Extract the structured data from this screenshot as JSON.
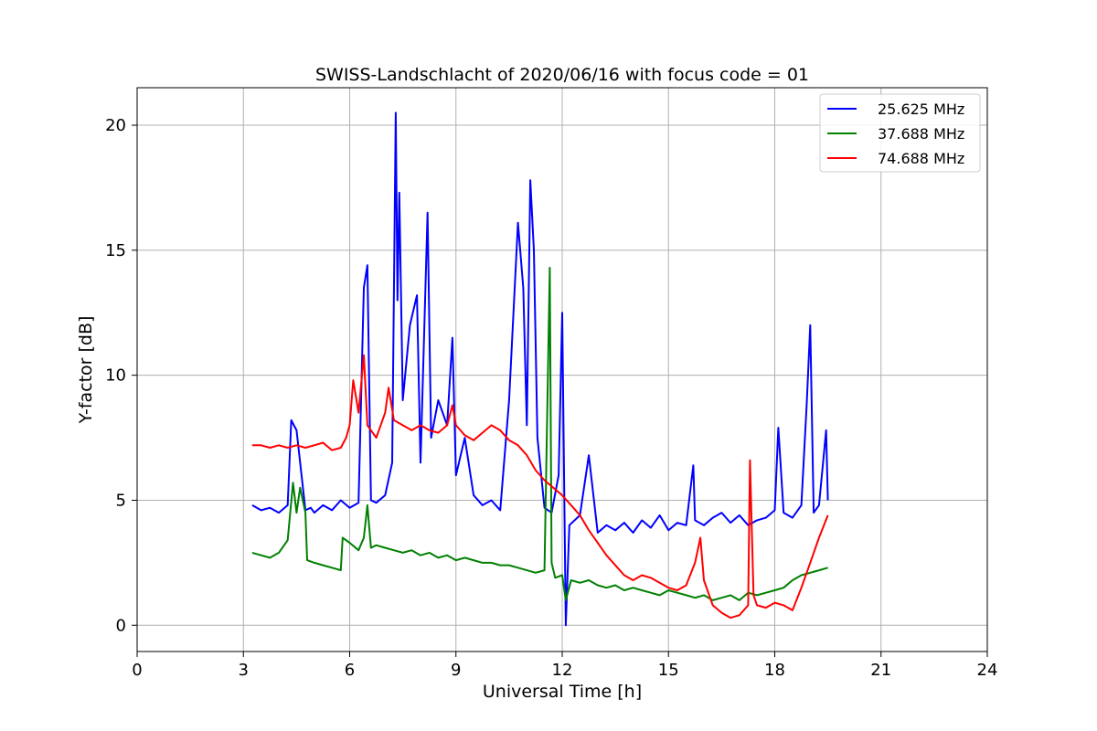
{
  "chart_data": {
    "type": "line",
    "title": "SWISS-Landschlacht of 2020/06/16 with focus code = 01",
    "xlabel": "Universal Time [h]",
    "ylabel": "Y-factor [dB]",
    "xlim": [
      0,
      24
    ],
    "ylim": [
      -1.05,
      21.5
    ],
    "xticks": [
      0,
      3,
      6,
      9,
      12,
      15,
      18,
      21,
      24
    ],
    "yticks": [
      0,
      5,
      10,
      15,
      20
    ],
    "grid": true,
    "legend_position": "top-right",
    "series": [
      {
        "name": "25.625 MHz",
        "color": "#0000ff",
        "x": [
          3.25,
          3.5,
          3.75,
          4.0,
          4.25,
          4.35,
          4.5,
          4.75,
          4.9,
          5.0,
          5.25,
          5.5,
          5.75,
          6.0,
          6.25,
          6.4,
          6.5,
          6.6,
          6.75,
          7.0,
          7.2,
          7.3,
          7.35,
          7.4,
          7.5,
          7.7,
          7.9,
          8.0,
          8.2,
          8.3,
          8.5,
          8.75,
          8.9,
          9.0,
          9.25,
          9.5,
          9.75,
          10.0,
          10.25,
          10.5,
          10.75,
          10.9,
          11.0,
          11.1,
          11.2,
          11.3,
          11.5,
          11.7,
          11.9,
          12.0,
          12.1,
          12.2,
          12.5,
          12.75,
          13.0,
          13.25,
          13.5,
          13.75,
          14.0,
          14.25,
          14.5,
          14.75,
          15.0,
          15.25,
          15.5,
          15.7,
          15.75,
          16.0,
          16.25,
          16.5,
          16.75,
          17.0,
          17.25,
          17.5,
          17.75,
          18.0,
          18.1,
          18.25,
          18.5,
          18.75,
          18.9,
          19.0,
          19.1,
          19.25,
          19.45,
          19.5
        ],
        "y": [
          4.8,
          4.6,
          4.7,
          4.5,
          4.8,
          8.2,
          7.8,
          4.6,
          4.7,
          4.5,
          4.8,
          4.6,
          5.0,
          4.7,
          4.9,
          13.5,
          14.4,
          5.0,
          4.9,
          5.2,
          6.5,
          20.5,
          13.0,
          17.3,
          9.0,
          12.0,
          13.2,
          6.5,
          16.5,
          7.5,
          9.0,
          8.0,
          11.5,
          6.0,
          7.5,
          5.2,
          4.8,
          5.0,
          4.6,
          9.0,
          16.1,
          13.5,
          8.0,
          17.8,
          15.0,
          7.5,
          4.7,
          4.5,
          6.0,
          12.5,
          0.0,
          4.0,
          4.4,
          6.8,
          3.7,
          4.0,
          3.8,
          4.1,
          3.7,
          4.2,
          3.9,
          4.4,
          3.8,
          4.1,
          4.0,
          6.4,
          4.2,
          4.0,
          4.3,
          4.5,
          4.1,
          4.4,
          4.0,
          4.2,
          4.3,
          4.6,
          7.9,
          4.5,
          4.3,
          4.8,
          8.8,
          12.0,
          4.5,
          4.8,
          7.8,
          5.0
        ]
      },
      {
        "name": "37.688 MHz",
        "color": "#008000",
        "x": [
          3.25,
          3.5,
          3.75,
          4.0,
          4.25,
          4.4,
          4.5,
          4.6,
          4.75,
          4.8,
          5.0,
          5.25,
          5.5,
          5.75,
          5.8,
          6.0,
          6.25,
          6.4,
          6.5,
          6.6,
          6.75,
          7.0,
          7.25,
          7.5,
          7.75,
          8.0,
          8.25,
          8.5,
          8.75,
          9.0,
          9.25,
          9.5,
          9.75,
          10.0,
          10.25,
          10.5,
          10.75,
          11.0,
          11.25,
          11.5,
          11.65,
          11.7,
          11.8,
          12.0,
          12.1,
          12.25,
          12.5,
          12.75,
          13.0,
          13.25,
          13.5,
          13.75,
          14.0,
          14.25,
          14.5,
          14.75,
          15.0,
          15.25,
          15.5,
          15.75,
          16.0,
          16.25,
          16.5,
          16.75,
          17.0,
          17.25,
          17.5,
          17.75,
          18.0,
          18.25,
          18.5,
          18.75,
          19.0,
          19.25,
          19.5
        ],
        "y": [
          2.9,
          2.8,
          2.7,
          2.9,
          3.4,
          5.7,
          4.5,
          5.5,
          4.5,
          2.6,
          2.5,
          2.4,
          2.3,
          2.2,
          3.5,
          3.3,
          3.0,
          3.5,
          4.8,
          3.1,
          3.2,
          3.1,
          3.0,
          2.9,
          3.0,
          2.8,
          2.9,
          2.7,
          2.8,
          2.6,
          2.7,
          2.6,
          2.5,
          2.5,
          2.4,
          2.4,
          2.3,
          2.2,
          2.1,
          2.2,
          14.3,
          2.5,
          1.9,
          2.0,
          1.0,
          1.8,
          1.7,
          1.8,
          1.6,
          1.5,
          1.6,
          1.4,
          1.5,
          1.4,
          1.3,
          1.2,
          1.4,
          1.3,
          1.2,
          1.1,
          1.2,
          1.0,
          1.1,
          1.2,
          1.0,
          1.3,
          1.2,
          1.3,
          1.4,
          1.5,
          1.8,
          2.0,
          2.1,
          2.2,
          2.3
        ]
      },
      {
        "name": "74.688 MHz",
        "color": "#ff0000",
        "x": [
          3.25,
          3.5,
          3.75,
          4.0,
          4.25,
          4.5,
          4.75,
          5.0,
          5.25,
          5.5,
          5.75,
          5.9,
          6.0,
          6.1,
          6.25,
          6.4,
          6.5,
          6.6,
          6.75,
          7.0,
          7.1,
          7.25,
          7.5,
          7.75,
          8.0,
          8.25,
          8.5,
          8.75,
          8.9,
          9.0,
          9.25,
          9.5,
          9.75,
          10.0,
          10.25,
          10.5,
          10.75,
          11.0,
          11.25,
          11.5,
          11.75,
          12.0,
          12.25,
          12.5,
          12.75,
          13.0,
          13.25,
          13.5,
          13.75,
          14.0,
          14.25,
          14.5,
          14.75,
          15.0,
          15.25,
          15.5,
          15.75,
          15.9,
          16.0,
          16.25,
          16.5,
          16.75,
          17.0,
          17.25,
          17.3,
          17.4,
          17.5,
          17.75,
          18.0,
          18.25,
          18.5,
          18.75,
          19.0,
          19.25,
          19.5
        ],
        "y": [
          7.2,
          7.2,
          7.1,
          7.2,
          7.1,
          7.2,
          7.1,
          7.2,
          7.3,
          7.0,
          7.1,
          7.5,
          8.0,
          9.8,
          8.5,
          10.8,
          8.0,
          7.8,
          7.5,
          8.5,
          9.5,
          8.2,
          8.0,
          7.8,
          8.0,
          7.8,
          7.7,
          8.0,
          8.8,
          8.0,
          7.6,
          7.4,
          7.7,
          8.0,
          7.8,
          7.4,
          7.2,
          6.8,
          6.2,
          5.8,
          5.5,
          5.2,
          4.8,
          4.4,
          3.8,
          3.3,
          2.8,
          2.4,
          2.0,
          1.8,
          2.0,
          1.9,
          1.7,
          1.5,
          1.4,
          1.6,
          2.5,
          3.5,
          1.8,
          0.8,
          0.5,
          0.3,
          0.4,
          0.8,
          6.6,
          1.2,
          0.8,
          0.7,
          0.9,
          0.8,
          0.6,
          1.5,
          2.5,
          3.5,
          4.4
        ]
      }
    ]
  }
}
